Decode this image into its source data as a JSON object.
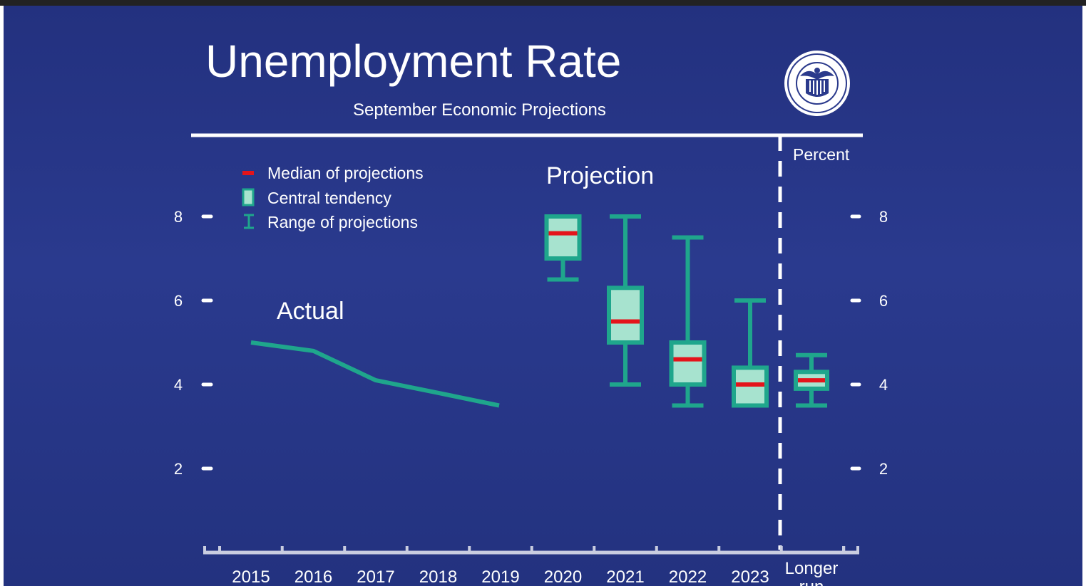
{
  "slide": {
    "title": "Unemployment Rate",
    "subtitle": "September Economic Projections",
    "unit_label": "Percent",
    "seal_name": "fed-seal",
    "seal_text": "UNITED STATES • FEDERAL RESERVE SYSTEM"
  },
  "colors": {
    "background": "#25358a",
    "teal": "#1fa68c",
    "box_fill": "#a7e3cf",
    "median": "#e4141b",
    "white": "#ffffff"
  },
  "chart_data": {
    "type": "box",
    "annotations": {
      "actual": "Actual",
      "projection": "Projection"
    },
    "legend": [
      {
        "key": "median",
        "label": "Median of projections"
      },
      {
        "key": "central",
        "label": "Central tendency"
      },
      {
        "key": "range",
        "label": "Range of projections"
      }
    ],
    "y_ticks": [
      2,
      4,
      6,
      8
    ],
    "y_tick_labels": [
      "2",
      "4",
      "6",
      "8"
    ],
    "ylim": [
      0,
      9
    ],
    "categories": [
      "2015",
      "2016",
      "2017",
      "2018",
      "2019",
      "2020",
      "2021",
      "2022",
      "2023",
      "Longer run"
    ],
    "actual": {
      "x": [
        "2015",
        "2016",
        "2017",
        "2018",
        "2019"
      ],
      "y": [
        5.0,
        4.8,
        4.1,
        3.8,
        3.5
      ]
    },
    "projections": [
      {
        "year": "2020",
        "range_low": 6.5,
        "range_high": 8.0,
        "central_low": 7.0,
        "central_high": 8.0,
        "median": 7.6
      },
      {
        "year": "2021",
        "range_low": 4.0,
        "range_high": 8.0,
        "central_low": 5.0,
        "central_high": 6.3,
        "median": 5.5
      },
      {
        "year": "2022",
        "range_low": 3.5,
        "range_high": 7.5,
        "central_low": 4.0,
        "central_high": 5.0,
        "median": 4.6
      },
      {
        "year": "2023",
        "range_low": 3.5,
        "range_high": 6.0,
        "central_low": 3.5,
        "central_high": 4.4,
        "median": 4.0
      },
      {
        "year": "Longer run",
        "range_low": 3.5,
        "range_high": 4.7,
        "central_low": 3.9,
        "central_high": 4.3,
        "median": 4.1
      }
    ]
  }
}
